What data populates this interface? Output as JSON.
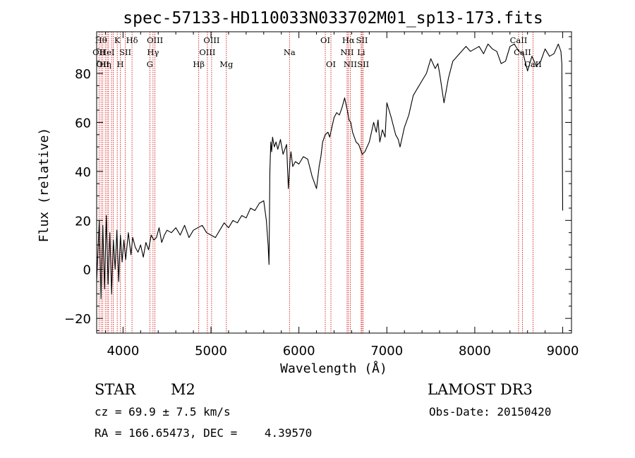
{
  "chart_data": {
    "type": "line",
    "title": "spec-57133-HD110033N033702M01_sp13-173.fits",
    "xlabel": "Wavelength (Å)",
    "ylabel": "Flux (relative)",
    "xlim": [
      3700,
      9100
    ],
    "ylim": [
      -26,
      97
    ],
    "xticks": [
      4000,
      5000,
      6000,
      7000,
      8000,
      9000
    ],
    "yticks": [
      -20,
      0,
      20,
      40,
      60,
      80
    ],
    "line_color": "#000000",
    "marker_color": "#cc0000",
    "series": [
      {
        "x": [
          3700,
          3730,
          3750,
          3770,
          3790,
          3810,
          3830,
          3850,
          3870,
          3890,
          3910,
          3930,
          3950,
          3970,
          3990,
          4010,
          4030,
          4060,
          4090,
          4110,
          4140,
          4170,
          4200,
          4230,
          4260,
          4290,
          4320,
          4350,
          4380,
          4410,
          4440,
          4470,
          4500,
          4550,
          4600,
          4650,
          4700,
          4750,
          4800,
          4850,
          4900,
          4950,
          5000,
          5050,
          5100,
          5150,
          5200,
          5250,
          5300,
          5350,
          5400,
          5450,
          5500,
          5550,
          5600,
          5630,
          5650,
          5660,
          5670,
          5680,
          5690,
          5700,
          5720,
          5740,
          5760,
          5790,
          5820,
          5860,
          5880,
          5900,
          5910,
          5930,
          5960,
          6000,
          6050,
          6100,
          6150,
          6200,
          6230,
          6250,
          6270,
          6300,
          6330,
          6350,
          6400,
          6430,
          6460,
          6490,
          6520,
          6550,
          6570,
          6590,
          6610,
          6630,
          6650,
          6680,
          6700,
          6720,
          6750,
          6800,
          6850,
          6880,
          6900,
          6920,
          6950,
          6980,
          7000,
          7050,
          7100,
          7130,
          7150,
          7200,
          7250,
          7300,
          7350,
          7400,
          7450,
          7500,
          7550,
          7580,
          7600,
          7650,
          7700,
          7750,
          7800,
          7850,
          7900,
          7950,
          8000,
          8050,
          8100,
          8150,
          8200,
          8250,
          8300,
          8350,
          8400,
          8450,
          8500,
          8550,
          8600,
          8650,
          8700,
          8750,
          8800,
          8850,
          8900,
          8950,
          8980,
          8990,
          9000
        ],
        "y": [
          -5,
          20,
          -12,
          18,
          -8,
          22,
          -6,
          15,
          -10,
          12,
          0,
          16,
          -5,
          14,
          3,
          12,
          4,
          15,
          6,
          13,
          9,
          7,
          10,
          5,
          11,
          8,
          14,
          12,
          13,
          17,
          11,
          14,
          16,
          15,
          17,
          14,
          18,
          13,
          16,
          17,
          18,
          15,
          14,
          13,
          16,
          19,
          17,
          20,
          19,
          22,
          21,
          25,
          24,
          27,
          28,
          20,
          10,
          2,
          40,
          52,
          48,
          54,
          50,
          52,
          49,
          53,
          47,
          51,
          33,
          45,
          48,
          42,
          44,
          43,
          46,
          45,
          38,
          33,
          42,
          46,
          52,
          55,
          56,
          54,
          62,
          64,
          63,
          66,
          70,
          65,
          61,
          60,
          56,
          54,
          52,
          51,
          49,
          47,
          48,
          52,
          60,
          56,
          61,
          52,
          57,
          54,
          68,
          62,
          55,
          53,
          50,
          58,
          63,
          71,
          74,
          77,
          80,
          86,
          82,
          84,
          80,
          68,
          78,
          85,
          87,
          89,
          91,
          89,
          90,
          91,
          88,
          92,
          90,
          89,
          84,
          85,
          91,
          92,
          89,
          88,
          81,
          87,
          83,
          85,
          90,
          87,
          88,
          92,
          89,
          84,
          24
        ]
      }
    ],
    "line_markers": [
      {
        "wl": 3727,
        "label": "OII",
        "row": 2
      },
      {
        "wl": 3750,
        "label": "Hθ",
        "row": 1
      },
      {
        "wl": 3770,
        "label": "OII",
        "row": 3
      },
      {
        "wl": 3798,
        "label": "Hη",
        "row": 3
      },
      {
        "wl": 3819,
        "label": "HeI",
        "row": 2
      },
      {
        "wl": 3835,
        "label": "",
        "row": 0
      },
      {
        "wl": 3869,
        "label": "",
        "row": 0
      },
      {
        "wl": 3889,
        "label": "",
        "row": 0
      },
      {
        "wl": 3934,
        "label": "K",
        "row": 1
      },
      {
        "wl": 3969,
        "label": "H",
        "row": 3
      },
      {
        "wl": 4026,
        "label": "SII",
        "row": 2
      },
      {
        "wl": 4102,
        "label": "Hδ",
        "row": 1
      },
      {
        "wl": 4305,
        "label": "G",
        "row": 3
      },
      {
        "wl": 4341,
        "label": "Hγ",
        "row": 2
      },
      {
        "wl": 4363,
        "label": "OIII",
        "row": 1
      },
      {
        "wl": 4861,
        "label": "Hβ",
        "row": 3
      },
      {
        "wl": 4959,
        "label": "OIII",
        "row": 2
      },
      {
        "wl": 5007,
        "label": "OIII",
        "row": 1
      },
      {
        "wl": 5175,
        "label": "Mg",
        "row": 3
      },
      {
        "wl": 5893,
        "label": "Na",
        "row": 2
      },
      {
        "wl": 6300,
        "label": "OI",
        "row": 1
      },
      {
        "wl": 6364,
        "label": "OI",
        "row": 3
      },
      {
        "wl": 6548,
        "label": "NII",
        "row": 2
      },
      {
        "wl": 6563,
        "label": "Hα",
        "row": 1
      },
      {
        "wl": 6584,
        "label": "NII",
        "row": 3
      },
      {
        "wl": 6708,
        "label": "Li",
        "row": 2
      },
      {
        "wl": 6717,
        "label": "SII",
        "row": 1
      },
      {
        "wl": 6731,
        "label": "SII",
        "row": 3
      },
      {
        "wl": 8498,
        "label": "CaII",
        "row": 1
      },
      {
        "wl": 8542,
        "label": "CaII",
        "row": 2
      },
      {
        "wl": 8662,
        "label": "CaII",
        "row": 3
      }
    ]
  },
  "info": {
    "class_label": "STAR",
    "subclass": "M2",
    "survey": "LAMOST DR3",
    "cz_text": "cz = 69.9 ± 7.5 km/s",
    "obs_date": "Obs-Date: 20150420",
    "radec_text": "RA = 166.65473, DEC =    4.39570"
  }
}
